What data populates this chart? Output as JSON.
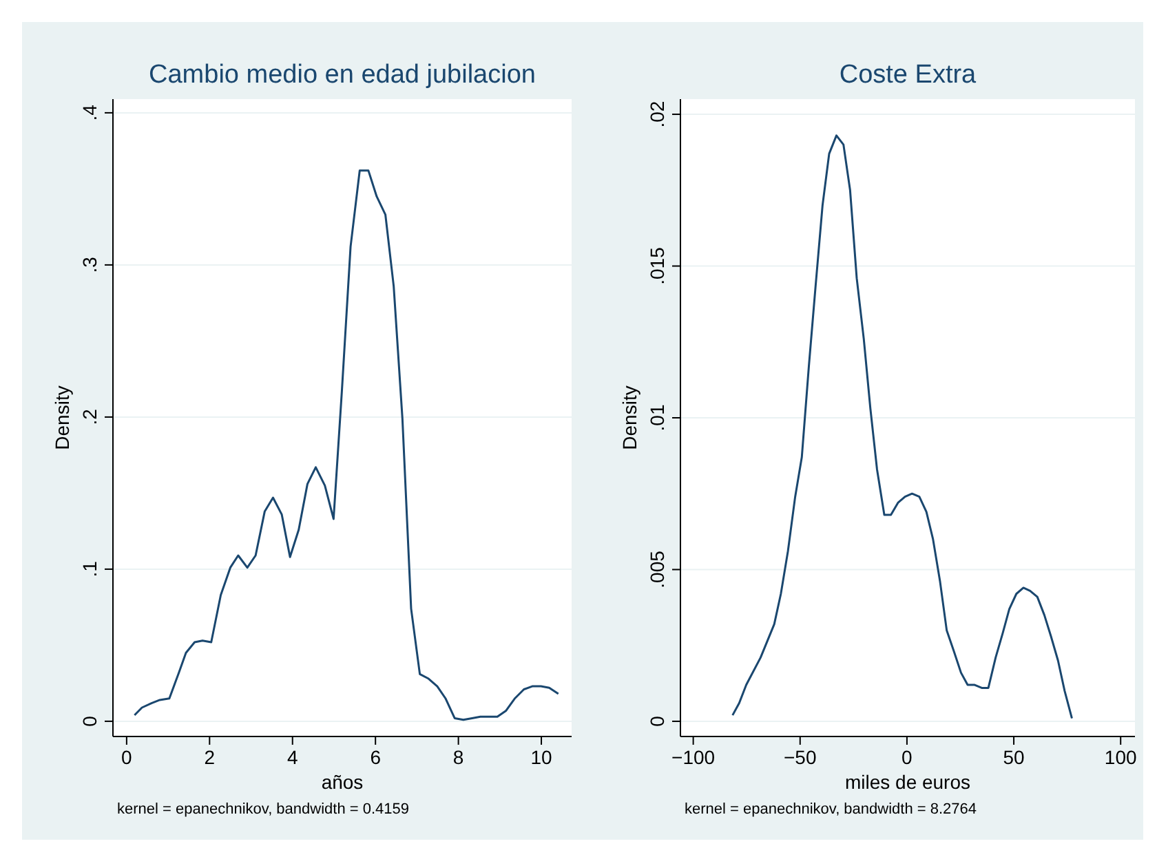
{
  "chart_data": [
    {
      "type": "line",
      "title": "Cambio medio en edad jubilacion",
      "xlabel": "años",
      "ylabel": "Density",
      "annotations": [
        "kernel = epanechnikov, bandwidth = 0.4159"
      ],
      "grid": "y",
      "xlim": [
        -0.33,
        10.73
      ],
      "ylim": [
        -0.01,
        0.409
      ],
      "xticks": [
        0,
        2,
        4,
        6,
        8,
        10
      ],
      "yticks": [
        0,
        {
          "value": 0.1,
          "label": ".1"
        },
        {
          "value": 0.2,
          "label": ".2"
        },
        {
          "value": 0.3,
          "label": ".3"
        },
        {
          "value": 0.4,
          "label": ".4"
        }
      ],
      "series": [
        {
          "color": "#1a476f",
          "x": [
            0.19,
            0.37,
            0.61,
            0.8,
            1.03,
            1.26,
            1.43,
            1.64,
            1.83,
            2.04,
            2.27,
            2.5,
            2.69,
            2.91,
            3.11,
            3.33,
            3.53,
            3.74,
            3.94,
            4.15,
            4.36,
            4.56,
            4.78,
            4.99,
            5.19,
            5.4,
            5.62,
            5.83,
            6.03,
            6.24,
            6.44,
            6.65,
            6.86,
            7.07,
            7.28,
            7.49,
            7.69,
            7.91,
            8.12,
            8.33,
            8.53,
            8.74,
            8.94,
            9.15,
            9.36,
            9.58,
            9.78,
            9.99,
            10.19,
            10.41
          ],
          "values": [
            0.004,
            0.009,
            0.012,
            0.014,
            0.015,
            0.032,
            0.045,
            0.052,
            0.053,
            0.052,
            0.083,
            0.101,
            0.109,
            0.101,
            0.109,
            0.138,
            0.147,
            0.136,
            0.108,
            0.126,
            0.156,
            0.167,
            0.155,
            0.133,
            0.217,
            0.312,
            0.362,
            0.362,
            0.345,
            0.333,
            0.286,
            0.199,
            0.074,
            0.031,
            0.028,
            0.023,
            0.015,
            0.002,
            0.001,
            0.002,
            0.003,
            0.003,
            0.003,
            0.007,
            0.015,
            0.021,
            0.023,
            0.023,
            0.022,
            0.018
          ]
        }
      ]
    },
    {
      "type": "line",
      "title": "Coste Extra",
      "xlabel": "miles de euros",
      "ylabel": "Density",
      "annotations": [
        "kernel = epanechnikov, bandwidth = 8.2764"
      ],
      "grid": "y",
      "xlim": [
        -106,
        106.7
      ],
      "ylim": [
        -0.0005,
        0.0205
      ],
      "xticks": [
        {
          "value": -100,
          "label": "−100"
        },
        {
          "value": -50,
          "label": "−50"
        },
        0,
        50,
        100
      ],
      "yticks": [
        0,
        {
          "value": 0.005,
          "label": ".005"
        },
        {
          "value": 0.01,
          "label": ".01"
        },
        {
          "value": 0.015,
          "label": ".015"
        },
        {
          "value": 0.02,
          "label": ".02"
        }
      ],
      "series": [
        {
          "color": "#1a476f",
          "x": [
            -81.6,
            -78.5,
            -75.2,
            -68.5,
            -62.1,
            -59,
            -55.7,
            -52.3,
            -49.2,
            -45.9,
            -42.8,
            -39.5,
            -36.4,
            -33,
            -29.7,
            -26.6,
            -23.5,
            -20.2,
            -17.1,
            -14,
            -10.6,
            -7.5,
            -4.2,
            -0.9,
            2.4,
            5.8,
            9.1,
            12.2,
            15.5,
            18.6,
            22,
            25.3,
            28.4,
            31.7,
            35,
            38.1,
            41.5,
            44.8,
            47.9,
            51.2,
            54.5,
            57.6,
            61,
            64.3,
            67.4,
            70.7,
            73.8,
            77.2
          ],
          "values": [
            0.0002,
            0.0006,
            0.0012,
            0.0021,
            0.0032,
            0.0042,
            0.0056,
            0.0074,
            0.0087,
            0.0117,
            0.0143,
            0.017,
            0.0187,
            0.0193,
            0.019,
            0.0175,
            0.0146,
            0.0126,
            0.0103,
            0.0083,
            0.0068,
            0.0068,
            0.0072,
            0.0074,
            0.0075,
            0.0074,
            0.0069,
            0.006,
            0.0046,
            0.003,
            0.0023,
            0.0016,
            0.0012,
            0.0012,
            0.0011,
            0.0011,
            0.0021,
            0.0029,
            0.0037,
            0.0042,
            0.0044,
            0.0043,
            0.0041,
            0.0035,
            0.0028,
            0.002,
            0.001,
            0.0001
          ]
        }
      ]
    }
  ]
}
